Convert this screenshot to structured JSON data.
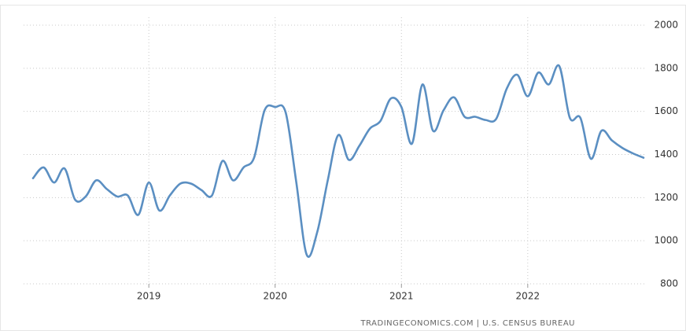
{
  "chart_data": {
    "type": "line",
    "categories": [
      null,
      null,
      null,
      null,
      null,
      null,
      null,
      null,
      null,
      null,
      null,
      "2019",
      null,
      null,
      null,
      null,
      null,
      null,
      null,
      null,
      null,
      null,
      null,
      "2020",
      null,
      null,
      null,
      null,
      null,
      null,
      null,
      null,
      null,
      null,
      null,
      "2021",
      null,
      null,
      null,
      null,
      null,
      null,
      null,
      null,
      null,
      null,
      null,
      "2022",
      null,
      null,
      null,
      null,
      null,
      null,
      null,
      null,
      null,
      null,
      null
    ],
    "series": [
      {
        "color": "#5b8fc2",
        "values": [
          1290,
          1340,
          1270,
          1335,
          1190,
          1205,
          1280,
          1240,
          1205,
          1210,
          1120,
          1270,
          1140,
          1210,
          1265,
          1265,
          1235,
          1210,
          1370,
          1280,
          1340,
          1385,
          1605,
          1620,
          1595,
          1275,
          935,
          1040,
          1280,
          1490,
          1375,
          1440,
          1520,
          1555,
          1660,
          1620,
          1450,
          1725,
          1510,
          1605,
          1665,
          1575,
          1575,
          1560,
          1565,
          1705,
          1770,
          1670,
          1780,
          1725,
          1810,
          1570,
          1570,
          1380,
          1510,
          1465,
          1430,
          1405,
          1385
        ]
      }
    ],
    "ylim": [
      800,
      2000
    ],
    "yticks": [
      800,
      1000,
      1200,
      1400,
      1600,
      1800,
      2000
    ],
    "grid": true,
    "source": "TRADINGECONOMICS.COM | U.S. CENSUS BUREAU"
  }
}
